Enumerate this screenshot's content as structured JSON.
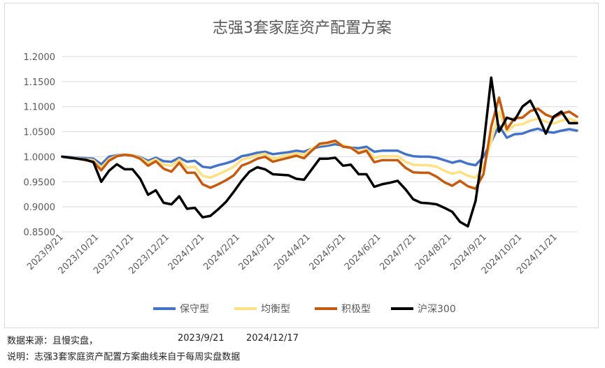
{
  "chart_data": {
    "type": "line",
    "title": "志强3套家庭资产配置方案",
    "xlabel": "",
    "ylabel": "",
    "ylim": [
      0.85,
      1.2
    ],
    "yticks": [
      "0.8500",
      "0.9000",
      "0.9500",
      "1.0000",
      "1.0500",
      "1.1000",
      "1.1500",
      "1.2000"
    ],
    "grid": "horizontal",
    "legend_position": "bottom",
    "x_tick_labels": [
      "2023/9/21",
      "2023/10/21",
      "2023/11/21",
      "2023/12/21",
      "2024/1/21",
      "2024/2/21",
      "2024/3/21",
      "2024/4/21",
      "2024/5/21",
      "2024/6/21",
      "2024/7/21",
      "2024/8/21",
      "2024/9/21",
      "2024/10/21",
      "2024/11/21"
    ],
    "series": [
      {
        "name": "保守型",
        "color": "#4472C4",
        "values": [
          1.0,
          0.999,
          0.998,
          0.997,
          0.996,
          0.985,
          1.0,
          1.003,
          1.004,
          1.003,
          0.999,
          0.992,
          0.998,
          0.991,
          0.99,
          0.998,
          0.99,
          0.992,
          0.98,
          0.978,
          0.983,
          0.987,
          0.992,
          1.001,
          1.004,
          1.008,
          1.01,
          1.005,
          1.007,
          1.009,
          1.012,
          1.01,
          1.016,
          1.02,
          1.022,
          1.025,
          1.022,
          1.018,
          1.017,
          1.02,
          1.01,
          1.012,
          1.012,
          1.012,
          1.005,
          1.001,
          1.0,
          1.0,
          0.998,
          0.993,
          0.988,
          0.992,
          0.986,
          0.983,
          1.0,
          1.03,
          1.062,
          1.038,
          1.045,
          1.046,
          1.052,
          1.056,
          1.05,
          1.048,
          1.052,
          1.055,
          1.052
        ]
      },
      {
        "name": "均衡型",
        "color": "#FFE083",
        "values": [
          1.0,
          0.998,
          0.997,
          0.995,
          0.993,
          0.978,
          0.995,
          1.002,
          1.004,
          1.003,
          0.998,
          0.988,
          0.995,
          0.984,
          0.982,
          0.994,
          0.978,
          0.98,
          0.962,
          0.958,
          0.965,
          0.972,
          0.98,
          0.994,
          0.998,
          1.003,
          1.006,
          0.996,
          1.0,
          1.003,
          1.007,
          1.004,
          1.016,
          1.024,
          1.026,
          1.03,
          1.023,
          1.018,
          1.01,
          1.015,
          0.998,
          1.001,
          1.001,
          1.001,
          0.99,
          0.984,
          0.983,
          0.983,
          0.98,
          0.972,
          0.966,
          0.97,
          0.962,
          0.958,
          0.98,
          1.03,
          1.09,
          1.05,
          1.063,
          1.065,
          1.072,
          1.076,
          1.07,
          1.066,
          1.072,
          1.076,
          1.07
        ]
      },
      {
        "name": "积极型",
        "color": "#C55A11",
        "values": [
          1.0,
          0.998,
          0.996,
          0.993,
          0.99,
          0.973,
          0.992,
          1.001,
          1.004,
          1.002,
          0.996,
          0.982,
          0.991,
          0.976,
          0.97,
          0.988,
          0.968,
          0.968,
          0.945,
          0.938,
          0.945,
          0.953,
          0.963,
          0.982,
          0.988,
          0.996,
          1.0,
          0.99,
          0.994,
          0.998,
          1.002,
          0.997,
          1.012,
          1.026,
          1.028,
          1.032,
          1.02,
          1.018,
          1.007,
          1.012,
          0.989,
          0.993,
          0.993,
          0.993,
          0.978,
          0.969,
          0.968,
          0.968,
          0.96,
          0.949,
          0.942,
          0.952,
          0.941,
          0.936,
          0.965,
          1.06,
          1.118,
          1.055,
          1.077,
          1.078,
          1.091,
          1.096,
          1.084,
          1.078,
          1.086,
          1.09,
          1.08
        ]
      },
      {
        "name": "沪深300",
        "color": "#000000",
        "values": [
          1.0,
          0.998,
          0.996,
          0.994,
          0.989,
          0.95,
          0.972,
          0.985,
          0.975,
          0.975,
          0.956,
          0.924,
          0.933,
          0.908,
          0.905,
          0.921,
          0.896,
          0.898,
          0.879,
          0.882,
          0.895,
          0.91,
          0.93,
          0.952,
          0.97,
          0.979,
          0.975,
          0.965,
          0.964,
          0.963,
          0.956,
          0.954,
          0.975,
          0.996,
          0.996,
          0.998,
          0.982,
          0.984,
          0.965,
          0.965,
          0.94,
          0.945,
          0.948,
          0.952,
          0.935,
          0.915,
          0.908,
          0.907,
          0.905,
          0.898,
          0.89,
          0.87,
          0.861,
          0.912,
          1.02,
          1.158,
          1.05,
          1.078,
          1.073,
          1.1,
          1.112,
          1.082,
          1.046,
          1.08,
          1.09,
          1.067,
          1.067
        ]
      }
    ]
  },
  "footer": {
    "source_label": "数据来源：且慢实盘，",
    "start_date": "2023/9/21",
    "end_date": "2024/12/17",
    "note": "说明：志强3套家庭资产配置方案曲线来自于每周实盘数据"
  }
}
